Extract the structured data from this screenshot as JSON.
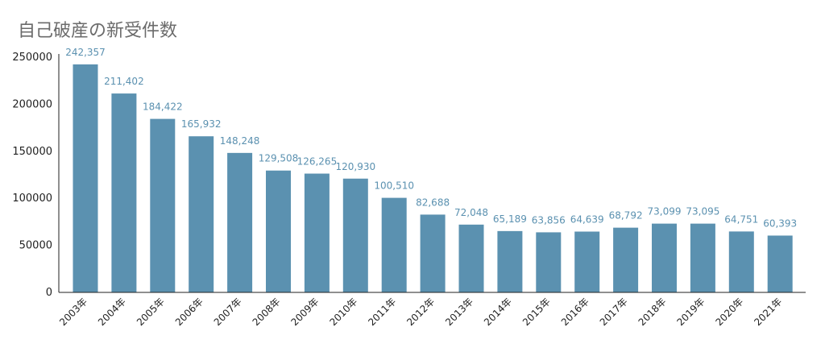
{
  "chart_data": {
    "type": "bar",
    "title": "自己破産の新受件数",
    "xlabel": "",
    "ylabel": "",
    "categories": [
      "2003年",
      "2004年",
      "2005年",
      "2006年",
      "2007年",
      "2008年",
      "2009年",
      "2010年",
      "2011年",
      "2012年",
      "2013年",
      "2014年",
      "2015年",
      "2016年",
      "2017年",
      "2018年",
      "2019年",
      "2020年",
      "2021年"
    ],
    "values": [
      242357,
      211402,
      184422,
      165932,
      148248,
      129508,
      126265,
      120930,
      100510,
      82688,
      72048,
      65189,
      63856,
      64639,
      68792,
      73099,
      73095,
      64751,
      60393
    ],
    "data_labels": [
      "242,357",
      "211,402",
      "184,422",
      "165,932",
      "148,248",
      "129,508",
      "126,265",
      "120,930",
      "100,510",
      "82,688",
      "72,048",
      "65,189",
      "63,856",
      "64,639",
      "68,792",
      "73,099",
      "73,095",
      "64,751",
      "60,393"
    ],
    "yticks": [
      0,
      50000,
      100000,
      150000,
      200000,
      250000
    ],
    "ytick_labels": [
      "0",
      "50000",
      "100000",
      "150000",
      "200000",
      "250000"
    ],
    "ylim": [
      0,
      250000
    ],
    "grid": false,
    "legend": "none",
    "colors": {
      "bar": "#5b91b0",
      "data_label": "#5b91b0",
      "axis": "#222222",
      "title": "#6b6b6b"
    }
  }
}
